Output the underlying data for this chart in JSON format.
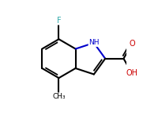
{
  "background_color": "#ffffff",
  "bond_color": "#000000",
  "nitrogen_color": "#0000cc",
  "oxygen_color": "#cc0000",
  "fluorine_color": "#33aaaa",
  "label_F": "F",
  "label_NH": "NH",
  "label_O": "O",
  "label_OH": "OH",
  "label_CH3": "CH₃",
  "figsize": [
    1.81,
    1.46
  ],
  "dpi": 100
}
